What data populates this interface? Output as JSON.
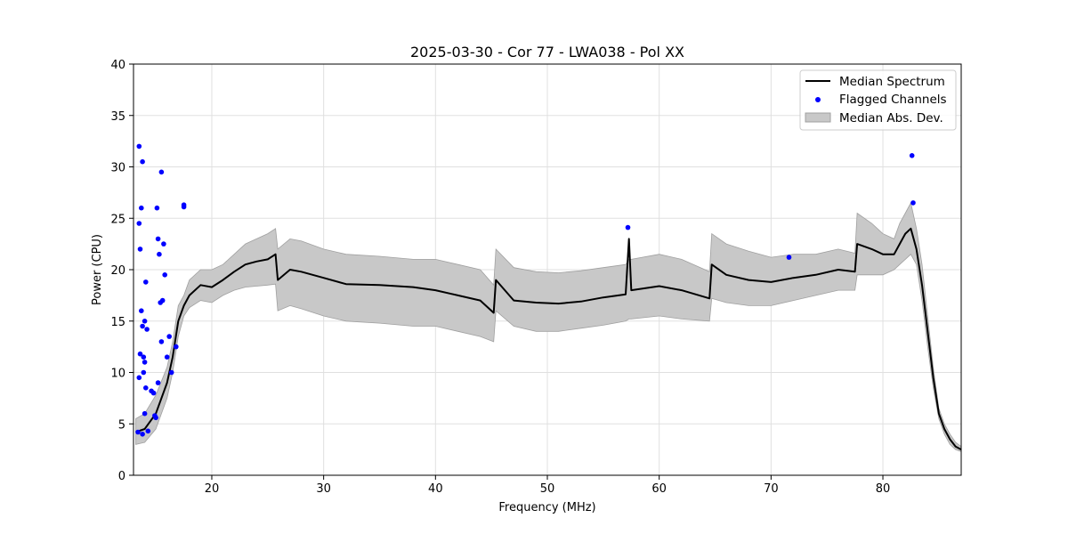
{
  "chart_data": {
    "type": "line",
    "title": "2025-03-30 - Cor 77 - LWA038 - Pol XX",
    "xlabel": "Frequency (MHz)",
    "ylabel": "Power (CPU)",
    "xlim": [
      13.0,
      87.0
    ],
    "ylim": [
      0,
      40
    ],
    "xticks": [
      20,
      30,
      40,
      50,
      60,
      70,
      80
    ],
    "yticks": [
      0,
      5,
      10,
      15,
      20,
      25,
      30,
      35,
      40
    ],
    "grid": true,
    "legend_position": "top-right",
    "legend": [
      "Median Spectrum",
      "Flagged Channels",
      "Median Abs. Dev."
    ],
    "colors": {
      "median": "#000000",
      "flagged": "#0000ff",
      "mad_fill": "#c8c8c8",
      "mad_edge": "#a0a0a0",
      "grid": "#e0e0e0"
    },
    "series": [
      {
        "name": "Median Spectrum",
        "x": [
          13.2,
          14.0,
          15.0,
          16.0,
          16.5,
          17.0,
          17.5,
          18.0,
          19.0,
          20.0,
          21.0,
          22.0,
          23.0,
          24.0,
          25.0,
          25.7,
          25.9,
          27.0,
          28.0,
          30.0,
          32.0,
          35.0,
          38.0,
          40.0,
          42.0,
          44.0,
          45.2,
          45.4,
          47.0,
          49.0,
          51.0,
          53.0,
          55.0,
          57.0,
          57.3,
          57.5,
          60.0,
          62.0,
          64.5,
          64.7,
          66.0,
          68.0,
          70.0,
          72.0,
          74.0,
          76.0,
          77.5,
          77.7,
          79.0,
          80.0,
          81.0,
          81.5,
          82.0,
          82.5,
          83.0,
          83.5,
          84.0,
          84.5,
          85.0,
          85.5,
          86.0,
          86.5,
          87.0
        ],
        "y": [
          4.2,
          4.5,
          6.0,
          9.0,
          11.5,
          15.0,
          16.5,
          17.5,
          18.5,
          18.3,
          19.0,
          19.8,
          20.5,
          20.8,
          21.0,
          21.5,
          19.0,
          20.0,
          19.8,
          19.2,
          18.6,
          18.5,
          18.3,
          18.0,
          17.5,
          17.0,
          15.8,
          19.0,
          17.0,
          16.8,
          16.7,
          16.9,
          17.3,
          17.6,
          23.0,
          18.0,
          18.4,
          18.0,
          17.2,
          20.5,
          19.5,
          19.0,
          18.8,
          19.2,
          19.5,
          20.0,
          19.8,
          22.5,
          22.0,
          21.5,
          21.5,
          22.5,
          23.5,
          24.0,
          22.0,
          18.5,
          14.0,
          9.5,
          6.0,
          4.5,
          3.5,
          2.8,
          2.5
        ],
        "mad_lower": [
          3.0,
          3.2,
          4.5,
          7.5,
          10.0,
          13.5,
          15.5,
          16.3,
          17.0,
          16.8,
          17.5,
          18.0,
          18.3,
          18.4,
          18.5,
          18.6,
          16.0,
          16.5,
          16.2,
          15.5,
          15.0,
          14.8,
          14.5,
          14.5,
          14.0,
          13.5,
          13.0,
          16.0,
          14.5,
          14.0,
          14.0,
          14.3,
          14.6,
          15.0,
          15.2,
          15.2,
          15.5,
          15.2,
          15.0,
          17.2,
          16.8,
          16.5,
          16.5,
          17.0,
          17.5,
          18.0,
          18.0,
          19.5,
          19.5,
          19.5,
          20.0,
          20.5,
          21.0,
          21.5,
          20.5,
          17.0,
          12.5,
          8.5,
          5.5,
          4.0,
          3.0,
          2.5,
          2.3
        ],
        "mad_upper": [
          5.5,
          6.0,
          7.8,
          10.5,
          13.0,
          16.5,
          17.5,
          19.0,
          20.0,
          20.0,
          20.5,
          21.5,
          22.5,
          23.0,
          23.5,
          24.0,
          22.0,
          23.0,
          22.8,
          22.0,
          21.5,
          21.3,
          21.0,
          21.0,
          20.5,
          20.0,
          18.5,
          22.0,
          20.2,
          19.8,
          19.7,
          19.9,
          20.2,
          20.5,
          21.0,
          21.0,
          21.5,
          21.0,
          19.8,
          23.5,
          22.5,
          21.8,
          21.2,
          21.5,
          21.5,
          22.0,
          21.6,
          25.5,
          24.5,
          23.5,
          23.0,
          24.5,
          25.5,
          26.5,
          24.0,
          20.5,
          15.5,
          10.5,
          6.5,
          5.0,
          4.0,
          3.2,
          2.8
        ]
      },
      {
        "name": "Flagged Channels",
        "x": [
          13.4,
          13.5,
          13.5,
          13.5,
          13.6,
          13.7,
          13.7,
          13.8,
          13.8,
          13.9,
          13.9,
          14.0,
          14.0,
          14.1,
          14.1,
          14.2,
          14.3,
          14.6,
          14.8,
          14.9,
          15.0,
          15.1,
          15.2,
          15.3,
          15.4,
          15.5,
          15.5,
          15.6,
          15.7,
          15.8,
          16.0,
          16.2,
          16.4,
          16.8,
          17.5,
          17.5,
          13.8,
          13.6,
          14.0,
          15.2,
          57.2,
          71.6,
          82.6,
          82.7
        ],
        "y": [
          4.2,
          32.0,
          9.5,
          24.5,
          22.0,
          26.0,
          16.0,
          30.5,
          14.5,
          11.5,
          10.0,
          15.0,
          11.0,
          18.8,
          8.5,
          14.2,
          4.3,
          8.2,
          8.0,
          5.8,
          5.6,
          26.0,
          23.0,
          21.5,
          16.8,
          13.0,
          29.5,
          17.0,
          22.5,
          19.5,
          11.5,
          13.5,
          10.0,
          12.5,
          26.3,
          26.1,
          4.0,
          11.8,
          6.0,
          9.0,
          24.1,
          21.2,
          31.1,
          26.5
        ]
      }
    ]
  }
}
